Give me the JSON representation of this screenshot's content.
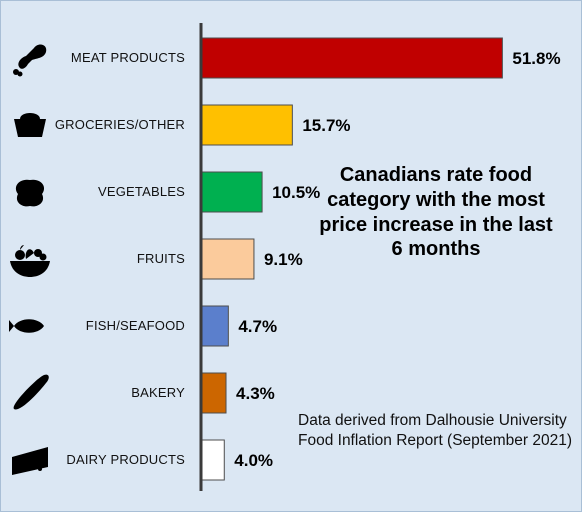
{
  "chart_data": {
    "type": "bar",
    "orientation": "horizontal",
    "categories": [
      "MEAT PRODUCTS",
      "GROCERIES/OTHER",
      "VEGETABLES",
      "FRUITS",
      "FISH/SEAFOOD",
      "BAKERY",
      "DAIRY PRODUCTS"
    ],
    "values": [
      51.8,
      15.7,
      10.5,
      9.1,
      4.7,
      4.3,
      4.0
    ],
    "value_labels": [
      "51.8%",
      "15.7%",
      "10.5%",
      "9.1%",
      "4.7%",
      "4.3%",
      "4.0%"
    ],
    "bar_colors": [
      "#c00000",
      "#ffc000",
      "#00b050",
      "#fbcb9c",
      "#5b7fcc",
      "#cc6600",
      "#ffffff"
    ],
    "icons": [
      "drumstick-icon",
      "basket-icon",
      "cabbage-icon",
      "fruit-bowl-icon",
      "fish-icon",
      "baguette-icon",
      "cheese-icon"
    ],
    "annotation": "Canadians rate food category with the most price increase in the last 6 months",
    "source_note": "Data derived from Dalhousie University Food Inflation Report (September 2021)",
    "xlim": [
      0,
      55
    ],
    "grid": false,
    "legend": "none"
  },
  "colors": {
    "background": "#dbe7f3",
    "axis": "#3a3a3a"
  }
}
